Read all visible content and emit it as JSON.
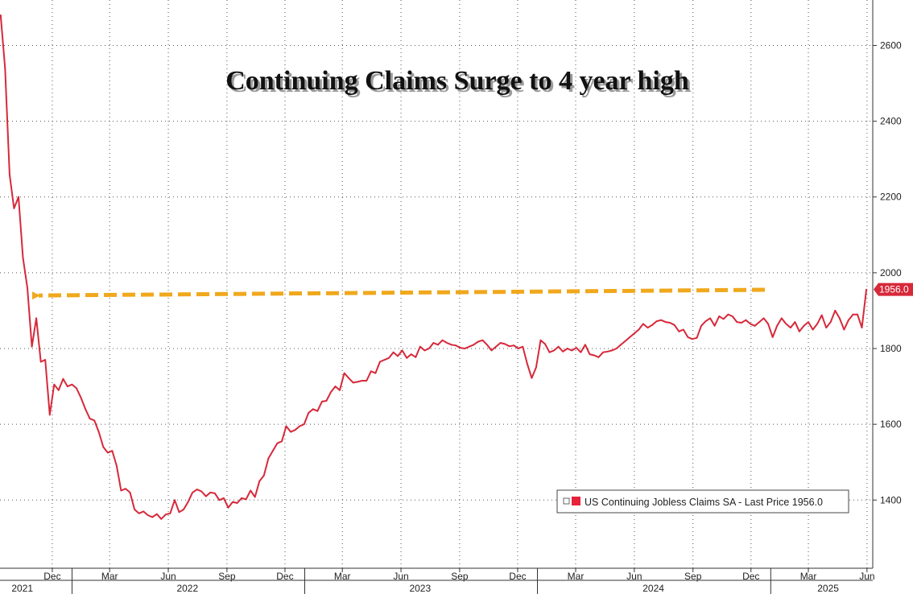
{
  "chart_data": {
    "type": "line",
    "title": "Continuing Claims Surge to 4 year high",
    "xlabel": "",
    "ylabel": "",
    "ylim": [
      1220,
      2720
    ],
    "y_ticks": [
      1400,
      1600,
      1800,
      2000,
      2200,
      2400,
      2600
    ],
    "x_range": [
      "2021-09-10",
      "2025-06-10"
    ],
    "month_ticks": [
      {
        "date": "2021-12-01",
        "label": "Dec"
      },
      {
        "date": "2022-03-01",
        "label": "Mar"
      },
      {
        "date": "2022-06-01",
        "label": "Jun"
      },
      {
        "date": "2022-09-01",
        "label": "Sep"
      },
      {
        "date": "2022-12-01",
        "label": "Dec"
      },
      {
        "date": "2023-03-01",
        "label": "Mar"
      },
      {
        "date": "2023-06-01",
        "label": "Jun"
      },
      {
        "date": "2023-09-01",
        "label": "Sep"
      },
      {
        "date": "2023-12-01",
        "label": "Dec"
      },
      {
        "date": "2024-03-01",
        "label": "Mar"
      },
      {
        "date": "2024-06-01",
        "label": "Jun"
      },
      {
        "date": "2024-09-01",
        "label": "Sep"
      },
      {
        "date": "2024-12-01",
        "label": "Dec"
      },
      {
        "date": "2025-03-01",
        "label": "Mar"
      },
      {
        "date": "2025-06-01",
        "label": "Jun"
      }
    ],
    "year_labels": [
      {
        "date": "2021-10-15",
        "label": "2021"
      },
      {
        "date": "2022-07-01",
        "label": "2022"
      },
      {
        "date": "2023-07-01",
        "label": "2023"
      },
      {
        "date": "2024-07-01",
        "label": "2024"
      },
      {
        "date": "2025-04-01",
        "label": "2025"
      }
    ],
    "year_boundaries": [
      "2022-01-01",
      "2023-01-01",
      "2024-01-01",
      "2025-01-01"
    ],
    "grid": true,
    "series": [
      {
        "name": "US Continuing Jobless Claims SA",
        "color": "#d6293a",
        "x": [
          "2021-09-11",
          "2021-09-18",
          "2021-09-25",
          "2021-10-02",
          "2021-10-09",
          "2021-10-16",
          "2021-10-23",
          "2021-10-30",
          "2021-11-06",
          "2021-11-13",
          "2021-11-20",
          "2021-11-27",
          "2021-12-04",
          "2021-12-11",
          "2021-12-18",
          "2021-12-25",
          "2022-01-01",
          "2022-01-08",
          "2022-01-15",
          "2022-01-22",
          "2022-01-29",
          "2022-02-05",
          "2022-02-12",
          "2022-02-19",
          "2022-02-26",
          "2022-03-05",
          "2022-03-12",
          "2022-03-19",
          "2022-03-26",
          "2022-04-02",
          "2022-04-09",
          "2022-04-16",
          "2022-04-23",
          "2022-04-30",
          "2022-05-07",
          "2022-05-14",
          "2022-05-21",
          "2022-05-28",
          "2022-06-04",
          "2022-06-11",
          "2022-06-18",
          "2022-06-25",
          "2022-07-02",
          "2022-07-09",
          "2022-07-16",
          "2022-07-23",
          "2022-07-30",
          "2022-08-06",
          "2022-08-13",
          "2022-08-20",
          "2022-08-27",
          "2022-09-03",
          "2022-09-10",
          "2022-09-17",
          "2022-09-24",
          "2022-10-01",
          "2022-10-08",
          "2022-10-15",
          "2022-10-22",
          "2022-10-29",
          "2022-11-05",
          "2022-11-12",
          "2022-11-19",
          "2022-11-26",
          "2022-12-03",
          "2022-12-10",
          "2022-12-17",
          "2022-12-24",
          "2022-12-31",
          "2023-01-07",
          "2023-01-14",
          "2023-01-21",
          "2023-01-28",
          "2023-02-04",
          "2023-02-11",
          "2023-02-18",
          "2023-02-25",
          "2023-03-04",
          "2023-03-11",
          "2023-03-18",
          "2023-03-25",
          "2023-04-01",
          "2023-04-08",
          "2023-04-15",
          "2023-04-22",
          "2023-04-29",
          "2023-05-06",
          "2023-05-13",
          "2023-05-20",
          "2023-05-27",
          "2023-06-03",
          "2023-06-10",
          "2023-06-17",
          "2023-06-24",
          "2023-07-01",
          "2023-07-08",
          "2023-07-15",
          "2023-07-22",
          "2023-07-29",
          "2023-08-05",
          "2023-08-12",
          "2023-08-19",
          "2023-08-26",
          "2023-09-02",
          "2023-09-09",
          "2023-09-16",
          "2023-09-23",
          "2023-09-30",
          "2023-10-07",
          "2023-10-14",
          "2023-10-21",
          "2023-10-28",
          "2023-11-04",
          "2023-11-11",
          "2023-11-18",
          "2023-11-25",
          "2023-12-02",
          "2023-12-09",
          "2023-12-16",
          "2023-12-23",
          "2023-12-30",
          "2024-01-06",
          "2024-01-13",
          "2024-01-20",
          "2024-01-27",
          "2024-02-03",
          "2024-02-10",
          "2024-02-17",
          "2024-02-24",
          "2024-03-02",
          "2024-03-09",
          "2024-03-16",
          "2024-03-23",
          "2024-03-30",
          "2024-04-06",
          "2024-04-13",
          "2024-04-20",
          "2024-04-27",
          "2024-05-04",
          "2024-05-11",
          "2024-05-18",
          "2024-05-25",
          "2024-06-01",
          "2024-06-08",
          "2024-06-15",
          "2024-06-22",
          "2024-06-29",
          "2024-07-06",
          "2024-07-13",
          "2024-07-20",
          "2024-07-27",
          "2024-08-03",
          "2024-08-10",
          "2024-08-17",
          "2024-08-24",
          "2024-08-31",
          "2024-09-07",
          "2024-09-14",
          "2024-09-21",
          "2024-09-28",
          "2024-10-05",
          "2024-10-12",
          "2024-10-19",
          "2024-10-26",
          "2024-11-02",
          "2024-11-09",
          "2024-11-16",
          "2024-11-23",
          "2024-11-30",
          "2024-12-07",
          "2024-12-14",
          "2024-12-21",
          "2024-12-28",
          "2025-01-04",
          "2025-01-11",
          "2025-01-18",
          "2025-01-25",
          "2025-02-01",
          "2025-02-08",
          "2025-02-15",
          "2025-02-22",
          "2025-03-01",
          "2025-03-08",
          "2025-03-15",
          "2025-03-22",
          "2025-03-29",
          "2025-04-05",
          "2025-04-12",
          "2025-04-19",
          "2025-04-26",
          "2025-05-03",
          "2025-05-10",
          "2025-05-17",
          "2025-05-24",
          "2025-05-31"
        ],
        "values": [
          2680,
          2540,
          2260,
          2170,
          2200,
          2040,
          1960,
          1805,
          1880,
          1765,
          1770,
          1625,
          1705,
          1690,
          1720,
          1700,
          1705,
          1695,
          1670,
          1640,
          1615,
          1610,
          1580,
          1540,
          1525,
          1530,
          1490,
          1425,
          1430,
          1420,
          1375,
          1365,
          1370,
          1360,
          1355,
          1363,
          1350,
          1362,
          1365,
          1400,
          1368,
          1375,
          1395,
          1420,
          1428,
          1423,
          1410,
          1420,
          1418,
          1400,
          1405,
          1380,
          1395,
          1392,
          1405,
          1402,
          1425,
          1408,
          1450,
          1465,
          1510,
          1530,
          1550,
          1555,
          1595,
          1580,
          1585,
          1595,
          1600,
          1630,
          1640,
          1635,
          1660,
          1662,
          1685,
          1700,
          1690,
          1735,
          1722,
          1710,
          1712,
          1715,
          1715,
          1740,
          1735,
          1765,
          1770,
          1775,
          1790,
          1780,
          1795,
          1775,
          1785,
          1777,
          1805,
          1795,
          1800,
          1815,
          1810,
          1822,
          1815,
          1810,
          1808,
          1802,
          1800,
          1805,
          1810,
          1818,
          1822,
          1810,
          1795,
          1805,
          1815,
          1812,
          1806,
          1808,
          1800,
          1805,
          1760,
          1722,
          1750,
          1822,
          1812,
          1790,
          1795,
          1805,
          1792,
          1800,
          1795,
          1802,
          1790,
          1810,
          1785,
          1782,
          1777,
          1790,
          1792,
          1795,
          1800,
          1810,
          1820,
          1830,
          1840,
          1850,
          1865,
          1855,
          1862,
          1872,
          1875,
          1870,
          1868,
          1862,
          1845,
          1850,
          1830,
          1825,
          1828,
          1860,
          1872,
          1880,
          1860,
          1885,
          1878,
          1890,
          1885,
          1870,
          1868,
          1875,
          1865,
          1860,
          1870,
          1880,
          1865,
          1830,
          1860,
          1880,
          1865,
          1855,
          1870,
          1845,
          1860,
          1870,
          1850,
          1865,
          1888,
          1855,
          1870,
          1900,
          1880,
          1850,
          1875,
          1890,
          1890,
          1855,
          1956
        ]
      }
    ],
    "last_price": 1956.0,
    "last_price_label": "1956.0",
    "legend": {
      "text": "US Continuing Jobless Claims SA - Last Price 1956.0",
      "placement": "bottom-right"
    },
    "annotation_arrow": {
      "description": "dashed arrow",
      "y_start": 1955,
      "y_end": 1940,
      "color": "#f0a81c"
    }
  }
}
